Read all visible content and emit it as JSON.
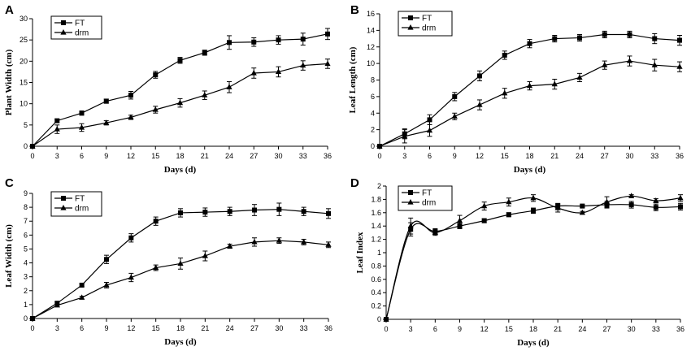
{
  "chart_data": [
    {
      "panel": "A",
      "type": "line",
      "xlabel": "Days (d)",
      "ylabel": "Plant Width (cm)",
      "xlim": [
        0,
        36
      ],
      "ylim": [
        0,
        30
      ],
      "xticks": [
        0,
        3,
        6,
        9,
        12,
        15,
        18,
        21,
        24,
        27,
        30,
        33,
        36
      ],
      "yticks": [
        0,
        5,
        10,
        15,
        20,
        25,
        30
      ],
      "x": [
        0,
        3,
        6,
        9,
        12,
        15,
        18,
        21,
        24,
        27,
        30,
        33,
        36
      ],
      "smooth": false,
      "legend": "top-left",
      "series": [
        {
          "name": "FT",
          "marker": "square",
          "values": [
            0,
            6,
            7.8,
            10.6,
            12,
            16.8,
            20.2,
            22,
            24.4,
            24.5,
            25,
            25.2,
            26.4
          ],
          "errors": [
            0,
            0.4,
            0.5,
            0.5,
            0.9,
            0.8,
            0.7,
            0.6,
            1.6,
            1.0,
            1.0,
            1.4,
            1.3
          ]
        },
        {
          "name": "drm",
          "marker": "triangle",
          "values": [
            0,
            4,
            4.4,
            5.5,
            6.8,
            8.6,
            10.2,
            12,
            13.9,
            17.2,
            17.5,
            19,
            19.4
          ],
          "errors": [
            0,
            1.0,
            0.9,
            0.5,
            0.5,
            0.8,
            1.0,
            1.0,
            1.3,
            1.2,
            1.2,
            1.1,
            1.1
          ]
        }
      ]
    },
    {
      "panel": "B",
      "type": "line",
      "xlabel": "Days (d)",
      "ylabel": "Leaf Length (cm)",
      "xlim": [
        0,
        36
      ],
      "ylim": [
        0,
        16
      ],
      "xticks": [
        0,
        3,
        6,
        9,
        12,
        15,
        18,
        21,
        24,
        27,
        30,
        33,
        36
      ],
      "yticks": [
        0,
        2,
        4,
        6,
        8,
        10,
        12,
        14,
        16
      ],
      "x": [
        0,
        3,
        6,
        9,
        12,
        15,
        18,
        21,
        24,
        27,
        30,
        33,
        36
      ],
      "smooth": false,
      "legend": "top-left",
      "series": [
        {
          "name": "FT",
          "marker": "square",
          "values": [
            0,
            1.5,
            3.2,
            6,
            8.5,
            11,
            12.4,
            13,
            13.1,
            13.5,
            13.5,
            13,
            12.8
          ],
          "errors": [
            0,
            0.6,
            0.6,
            0.5,
            0.6,
            0.5,
            0.5,
            0.4,
            0.4,
            0.4,
            0.4,
            0.6,
            0.6
          ]
        },
        {
          "name": "drm",
          "marker": "triangle",
          "values": [
            0,
            1.2,
            1.9,
            3.6,
            5,
            6.4,
            7.3,
            7.5,
            8.3,
            9.8,
            10.3,
            9.8,
            9.6
          ],
          "errors": [
            0,
            0.8,
            0.7,
            0.4,
            0.6,
            0.6,
            0.5,
            0.6,
            0.5,
            0.5,
            0.6,
            0.7,
            0.6
          ]
        }
      ]
    },
    {
      "panel": "C",
      "type": "line",
      "xlabel": "Days (d)",
      "ylabel": "Leaf Width (cm)",
      "xlim": [
        0,
        36
      ],
      "ylim": [
        0,
        9
      ],
      "xticks": [
        0,
        3,
        6,
        9,
        12,
        15,
        18,
        21,
        24,
        27,
        30,
        33,
        36
      ],
      "yticks": [
        0,
        1,
        2,
        3,
        4,
        5,
        6,
        7,
        8,
        9
      ],
      "x": [
        0,
        3,
        6,
        9,
        12,
        15,
        18,
        21,
        24,
        27,
        30,
        33,
        36
      ],
      "smooth": false,
      "legend": "top-left",
      "series": [
        {
          "name": "FT",
          "marker": "square",
          "values": [
            0,
            1.1,
            2.4,
            4.25,
            5.8,
            7,
            7.6,
            7.65,
            7.7,
            7.8,
            7.85,
            7.7,
            7.55
          ],
          "errors": [
            0,
            0.1,
            0.1,
            0.3,
            0.3,
            0.3,
            0.3,
            0.3,
            0.3,
            0.4,
            0.45,
            0.3,
            0.35
          ]
        },
        {
          "name": "drm",
          "marker": "triangle",
          "values": [
            0,
            0.95,
            1.5,
            2.4,
            2.95,
            3.65,
            3.95,
            4.5,
            5.2,
            5.5,
            5.6,
            5.5,
            5.3
          ],
          "errors": [
            0,
            0.1,
            0.1,
            0.2,
            0.3,
            0.2,
            0.4,
            0.35,
            0.15,
            0.3,
            0.2,
            0.2,
            0.2
          ]
        }
      ]
    },
    {
      "panel": "D",
      "type": "line",
      "xlabel": "Days (d)",
      "ylabel": "Leaf Index",
      "xlim": [
        0,
        36
      ],
      "ylim": [
        0,
        2
      ],
      "xticks": [
        0,
        3,
        6,
        9,
        12,
        15,
        18,
        21,
        24,
        27,
        30,
        33,
        36
      ],
      "yticks": [
        0,
        0.2,
        0.4,
        0.6,
        0.8,
        1,
        1.2,
        1.4,
        1.6,
        1.8,
        2
      ],
      "x": [
        0,
        3,
        6,
        9,
        12,
        15,
        18,
        21,
        24,
        27,
        30,
        33,
        36
      ],
      "smooth": true,
      "legend": "top-left",
      "series": [
        {
          "name": "FT",
          "marker": "square",
          "values": [
            0,
            1.35,
            1.32,
            1.4,
            1.48,
            1.57,
            1.63,
            1.7,
            1.7,
            1.72,
            1.72,
            1.68,
            1.69
          ],
          "errors": [
            0,
            0.1,
            0.04,
            0.04,
            0.03,
            0.03,
            0.04,
            0.04,
            0.02,
            0.05,
            0.05,
            0.05,
            0.05
          ]
        },
        {
          "name": "drm",
          "marker": "triangle",
          "values": [
            0,
            1.4,
            1.3,
            1.48,
            1.7,
            1.76,
            1.82,
            1.67,
            1.6,
            1.76,
            1.85,
            1.78,
            1.82
          ],
          "errors": [
            0,
            0.12,
            0.04,
            0.08,
            0.06,
            0.06,
            0.05,
            0.06,
            0.02,
            0.08,
            0.02,
            0.03,
            0.05
          ]
        }
      ]
    }
  ]
}
